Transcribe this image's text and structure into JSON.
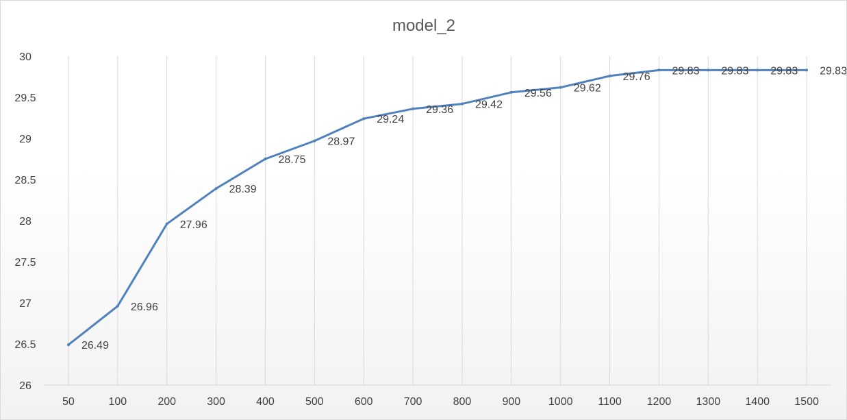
{
  "chart_data": {
    "type": "line",
    "title": "model_2",
    "xlabel": "",
    "ylabel": "",
    "categories": [
      "50",
      "100",
      "200",
      "300",
      "400",
      "500",
      "600",
      "700",
      "800",
      "900",
      "1000",
      "1100",
      "1200",
      "1300",
      "1400",
      "1500"
    ],
    "series": [
      {
        "values": [
          26.49,
          26.96,
          27.96,
          28.39,
          28.75,
          28.97,
          29.24,
          29.36,
          29.42,
          29.56,
          29.62,
          29.76,
          29.83,
          29.83,
          29.83,
          29.83
        ],
        "color": "#4f81bd"
      }
    ],
    "ylim": [
      26,
      30
    ],
    "yticks": [
      "26",
      "26.5",
      "27",
      "27.5",
      "28",
      "28.5",
      "29",
      "29.5",
      "30"
    ],
    "grid": "vertical",
    "legend": "none",
    "data_labels": true
  }
}
